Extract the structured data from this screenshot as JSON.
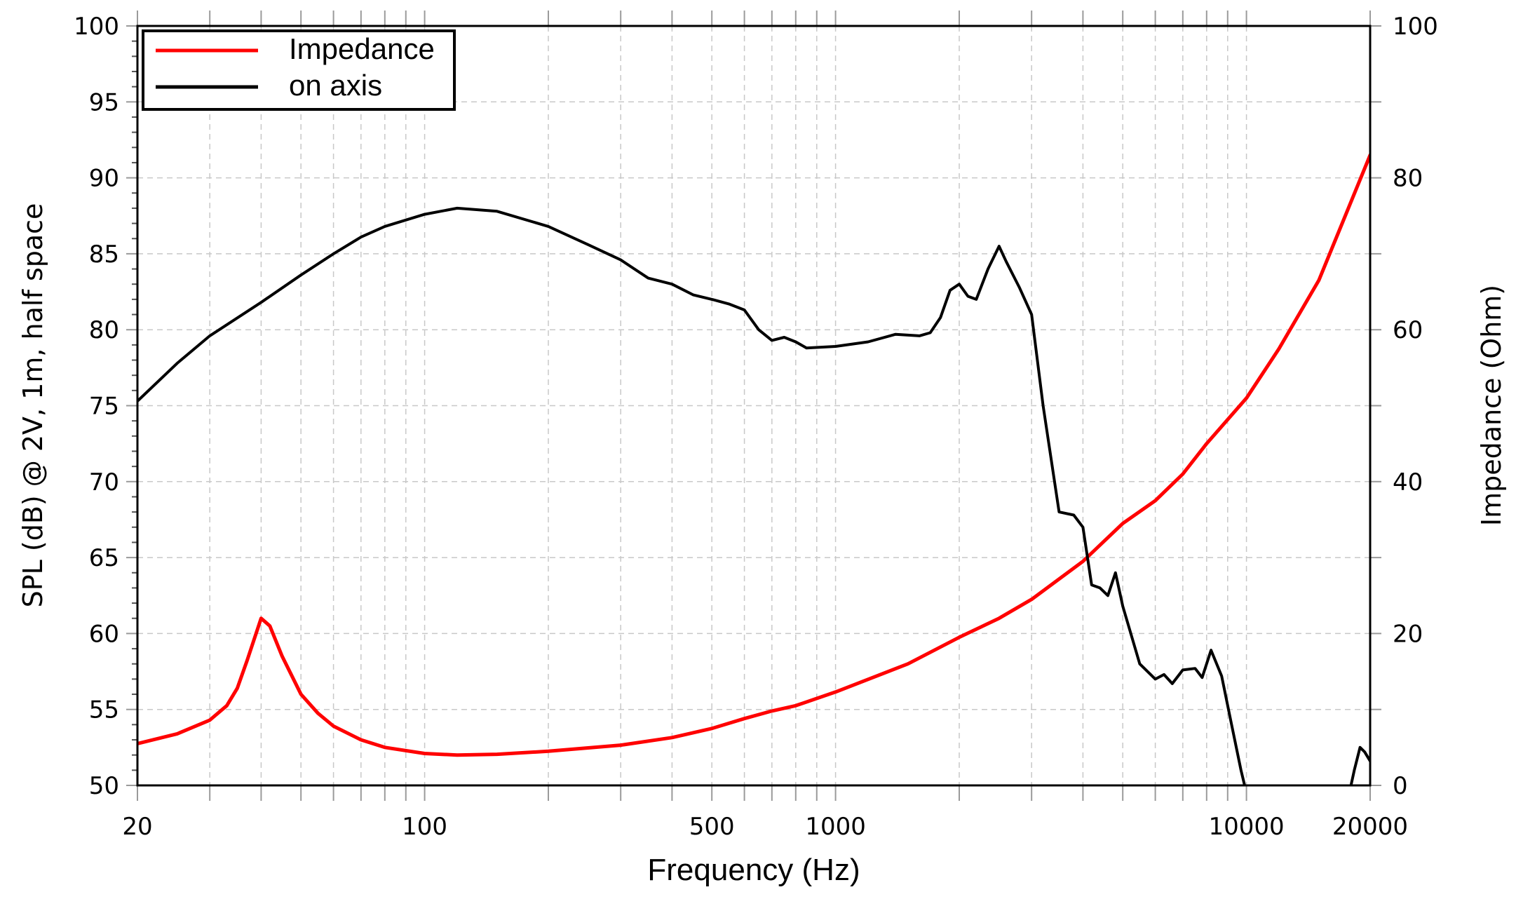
{
  "chart_data": {
    "type": "line",
    "title": "",
    "xlabel": "Frequency (Hz)",
    "ylabel": "SPL (dB) @ 2V, 1m, half space",
    "ylabel_right": "Impedance (Ohm)",
    "xscale": "log",
    "xlim": [
      20,
      20000
    ],
    "ylim": [
      50,
      100
    ],
    "ylim_right": [
      0,
      100
    ],
    "grid": true,
    "legend_position": "upper left",
    "x_ticks": [
      20,
      100,
      500,
      1000,
      10000,
      20000
    ],
    "x_tick_labels": [
      "20",
      "100",
      "500",
      "1000",
      "10000",
      "20000"
    ],
    "y_ticks": [
      50,
      55,
      60,
      65,
      70,
      75,
      80,
      85,
      90,
      95,
      100
    ],
    "y_ticks_right": [
      0,
      20,
      40,
      60,
      80,
      100
    ],
    "series": [
      {
        "name": "Impedance",
        "axis": "right",
        "color": "#ff0000",
        "x": [
          20,
          25,
          30,
          33,
          35,
          37,
          40,
          42,
          45,
          50,
          55,
          60,
          70,
          80,
          100,
          120,
          150,
          200,
          300,
          400,
          500,
          600,
          700,
          800,
          1000,
          1500,
          2000,
          2500,
          3000,
          4000,
          5000,
          6000,
          7000,
          8000,
          10000,
          12000,
          15000,
          20000
        ],
        "values": [
          5.5,
          6.8,
          8.6,
          10.5,
          12.8,
          16.5,
          22.0,
          21.0,
          17.0,
          12.0,
          9.5,
          7.8,
          6.0,
          5.0,
          4.2,
          4.0,
          4.1,
          4.5,
          5.3,
          6.3,
          7.5,
          8.8,
          9.8,
          10.5,
          12.3,
          16.0,
          19.5,
          22.0,
          24.5,
          29.5,
          34.5,
          37.5,
          41.0,
          45.0,
          51.0,
          57.5,
          66.5,
          83.0
        ]
      },
      {
        "name": "on axis",
        "axis": "left",
        "color": "#000000",
        "x": [
          20,
          25,
          30,
          40,
          50,
          60,
          70,
          80,
          100,
          120,
          150,
          200,
          250,
          300,
          350,
          400,
          450,
          500,
          550,
          600,
          650,
          700,
          750,
          800,
          850,
          1000,
          1200,
          1400,
          1600,
          1700,
          1800,
          1900,
          2000,
          2100,
          2200,
          2350,
          2500,
          2600,
          2800,
          3000,
          3200,
          3500,
          3800,
          4000,
          4200,
          4400,
          4600,
          4800,
          5000,
          5500,
          6000,
          6300,
          6600,
          7000,
          7500,
          7800,
          8200,
          8700,
          9200,
          9700,
          10000
        ],
        "values": [
          75.3,
          77.8,
          79.6,
          81.8,
          83.6,
          85.0,
          86.1,
          86.8,
          87.6,
          88.0,
          87.8,
          86.8,
          85.6,
          84.6,
          83.4,
          83.0,
          82.3,
          82.0,
          81.7,
          81.3,
          80.0,
          79.3,
          79.5,
          79.2,
          78.8,
          78.9,
          79.2,
          79.7,
          79.6,
          79.8,
          80.8,
          82.6,
          83.0,
          82.2,
          82.0,
          84.0,
          85.5,
          84.5,
          82.8,
          81.0,
          75.0,
          68.0,
          67.8,
          67.0,
          63.2,
          63.0,
          62.5,
          64.0,
          61.8,
          58.0,
          57.0,
          57.3,
          56.7,
          57.6,
          57.7,
          57.1,
          58.9,
          57.2,
          54.0,
          51.0,
          49.5
        ]
      },
      {
        "name": "on axis (tail)",
        "axis": "left",
        "color": "#000000",
        "x": [
          17800,
          18300,
          18900,
          19400,
          20000
        ],
        "values": [
          49.5,
          51.0,
          52.5,
          52.2,
          51.6
        ]
      }
    ]
  },
  "legend": {
    "items": [
      {
        "label": "Impedance",
        "color": "#ff0000"
      },
      {
        "label": "on axis",
        "color": "#000000"
      }
    ]
  },
  "axes": {
    "xlabel": "Frequency (Hz)",
    "ylabel": "SPL (dB) @ 2V, 1m, half space",
    "ylabel_right": "Impedance (Ohm)"
  }
}
